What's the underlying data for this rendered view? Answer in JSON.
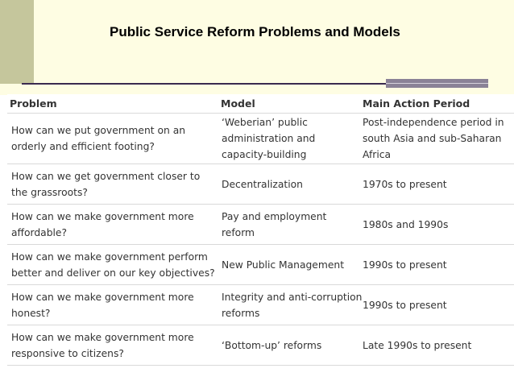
{
  "slide": {
    "title": "Public Service Reform Problems and Models"
  },
  "table": {
    "headers": [
      "Problem",
      "Model",
      "Main Action Period"
    ],
    "rows": [
      {
        "problem": "How can we put government on an orderly and efficient footing?",
        "model": "‘Weberian’ public administration and capacity-building",
        "period": "Post-independence period in south Asia and sub-Saharan Africa"
      },
      {
        "problem": "How can we get government closer to the grassroots?",
        "model": "Decentralization",
        "period": "1970s to present"
      },
      {
        "problem": "How can we make government more affordable?",
        "model": "Pay and employment reform",
        "period": "1980s and 1990s"
      },
      {
        "problem": "How can we make government perform better and deliver on our key objectives?",
        "model": "New Public Management",
        "period": "1990s to present"
      },
      {
        "problem": "How can we make government more honest?",
        "model": "Integrity and anti-corruption reforms",
        "period": "1990s to present"
      },
      {
        "problem": "How can we make government more responsive to citizens?",
        "model": "‘Bottom-up’ reforms",
        "period": "Late 1990s to present"
      }
    ]
  }
}
